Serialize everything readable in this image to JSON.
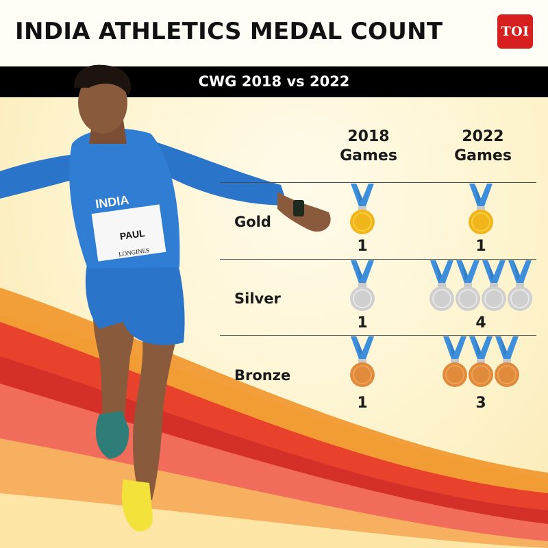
{
  "title": "INDIA ATHLETICS MEDAL COUNT",
  "logo_text": "TOI",
  "subtitle": "CWG 2018 vs 2022",
  "columns": [
    {
      "line1": "2018",
      "line2": "Games"
    },
    {
      "line1": "2022",
      "line2": "Games"
    }
  ],
  "rows": [
    {
      "label": "Gold",
      "count_2018": "1",
      "count_2022": "1",
      "color": "#f0b51a",
      "rim": "#f7cf3c"
    },
    {
      "label": "Silver",
      "count_2018": "1",
      "count_2022": "4",
      "color": "#cfcfcf",
      "rim": "#e7e7e7"
    },
    {
      "label": "Bronze",
      "count_2018": "1",
      "count_2022": "3",
      "color": "#e08a3c",
      "rim": "#eea258"
    }
  ],
  "colors": {
    "ribbon": "#3d8fdb",
    "ribbon_dark": "#2a6fb8",
    "logo": "#d71f1f",
    "header_bar": "#000000"
  },
  "athlete_bib": {
    "line1": "INDIA",
    "line2": "PAUL",
    "line3": "LONGINES"
  },
  "chart_data": {
    "type": "table",
    "title": "INDIA ATHLETICS MEDAL COUNT",
    "subtitle": "CWG 2018 vs 2022",
    "categories": [
      "Gold",
      "Silver",
      "Bronze"
    ],
    "series": [
      {
        "name": "2018 Games",
        "values": [
          1,
          1,
          1
        ]
      },
      {
        "name": "2022 Games",
        "values": [
          1,
          4,
          3
        ]
      }
    ]
  }
}
